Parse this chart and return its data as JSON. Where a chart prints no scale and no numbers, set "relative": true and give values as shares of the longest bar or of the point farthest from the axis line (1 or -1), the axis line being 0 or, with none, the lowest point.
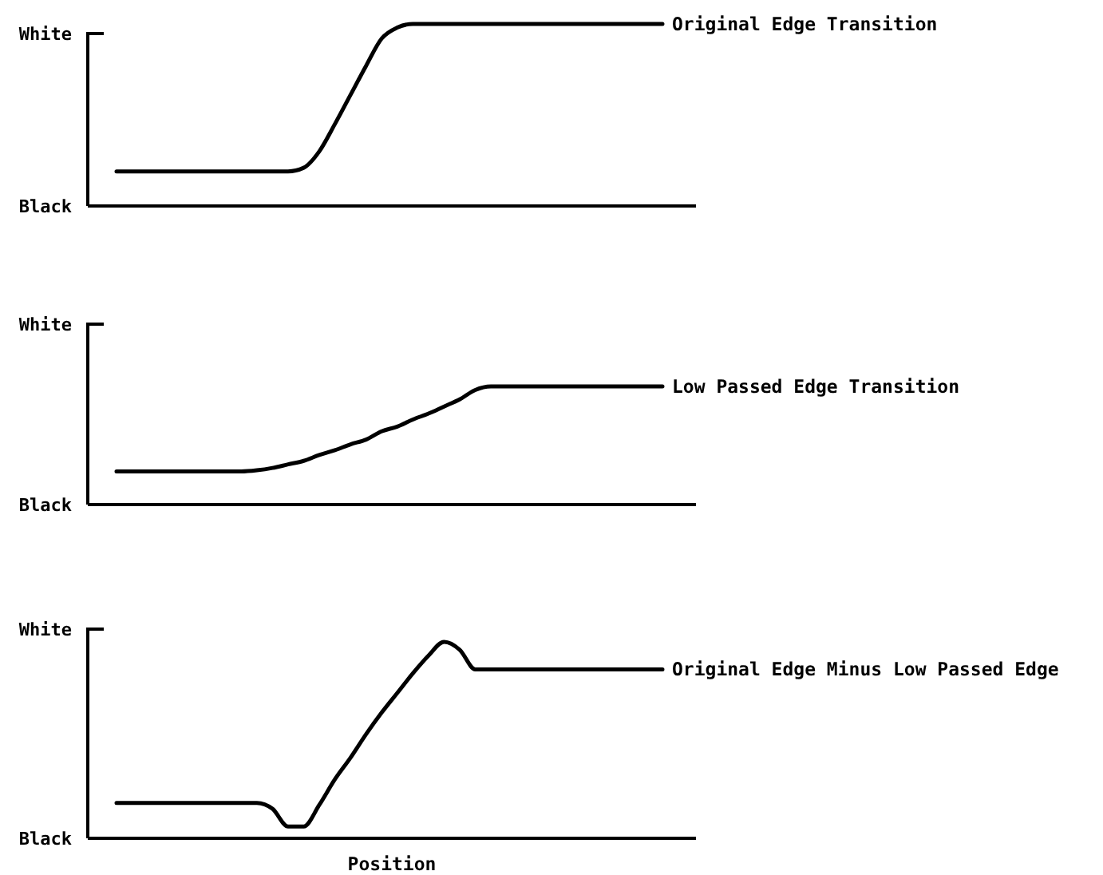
{
  "chart_data": [
    {
      "type": "line",
      "relative": true,
      "categories": [
        null,
        null,
        null,
        null,
        null,
        null,
        null,
        null,
        null,
        null,
        null,
        null,
        null,
        null,
        null,
        null,
        null,
        null,
        null,
        null,
        null,
        null,
        null,
        null,
        null,
        null,
        null,
        null,
        null,
        null,
        null,
        null,
        null,
        null,
        null,
        null
      ],
      "annotations": [
        "White",
        "Black"
      ],
      "series": [
        {
          "name": "Original Edge Transition",
          "color": "#000000",
          "values": [
            0.19,
            0.19,
            0.19,
            0.19,
            0.19,
            0.19,
            0.19,
            0.19,
            0.19,
            0.19,
            0.19,
            0.19,
            0.21,
            0.3,
            0.45,
            0.61,
            0.77,
            0.92,
            0.98,
            1,
            1,
            1,
            1,
            1,
            1,
            1,
            1,
            1,
            1,
            1,
            1,
            1,
            1,
            1,
            1,
            1
          ]
        }
      ]
    },
    {
      "type": "line",
      "relative": true,
      "categories": [
        null,
        null,
        null,
        null,
        null,
        null,
        null,
        null,
        null,
        null,
        null,
        null,
        null,
        null,
        null,
        null,
        null,
        null,
        null,
        null,
        null,
        null,
        null,
        null,
        null,
        null,
        null,
        null,
        null,
        null,
        null,
        null,
        null,
        null,
        null,
        null
      ],
      "annotations": [
        "White",
        "Black"
      ],
      "series": [
        {
          "name": "Low Passed Edge Transition",
          "color": "#000000",
          "values": [
            0.28,
            0.28,
            0.28,
            0.28,
            0.28,
            0.28,
            0.28,
            0.28,
            0.28,
            0.29,
            0.31,
            0.34,
            0.37,
            0.42,
            0.46,
            0.51,
            0.55,
            0.62,
            0.66,
            0.72,
            0.77,
            0.83,
            0.89,
            0.97,
            1,
            1,
            1,
            1,
            1,
            1,
            1,
            1,
            1,
            1,
            1,
            1
          ]
        }
      ]
    },
    {
      "type": "line",
      "relative": true,
      "categories": [
        null,
        null,
        null,
        null,
        null,
        null,
        null,
        null,
        null,
        null,
        null,
        null,
        null,
        null,
        null,
        null,
        null,
        null,
        null,
        null,
        null,
        null,
        null,
        null,
        null,
        null,
        null,
        null,
        null,
        null,
        null,
        null,
        null,
        null,
        null,
        null
      ],
      "annotations": [
        "White",
        "Black"
      ],
      "xlabel": "Position",
      "series": [
        {
          "name": "Original Edge Minus Low Passed Edge",
          "color": "#000000",
          "values": [
            0.18,
            0.18,
            0.18,
            0.18,
            0.18,
            0.18,
            0.18,
            0.18,
            0.18,
            0.18,
            0.15,
            0.06,
            0.06,
            0.17,
            0.3,
            0.41,
            0.53,
            0.64,
            0.74,
            0.84,
            0.93,
            1,
            0.96,
            0.86,
            0.86,
            0.86,
            0.86,
            0.86,
            0.86,
            0.86,
            0.86,
            0.86,
            0.86,
            0.86,
            0.86,
            0.86
          ]
        }
      ]
    }
  ]
}
